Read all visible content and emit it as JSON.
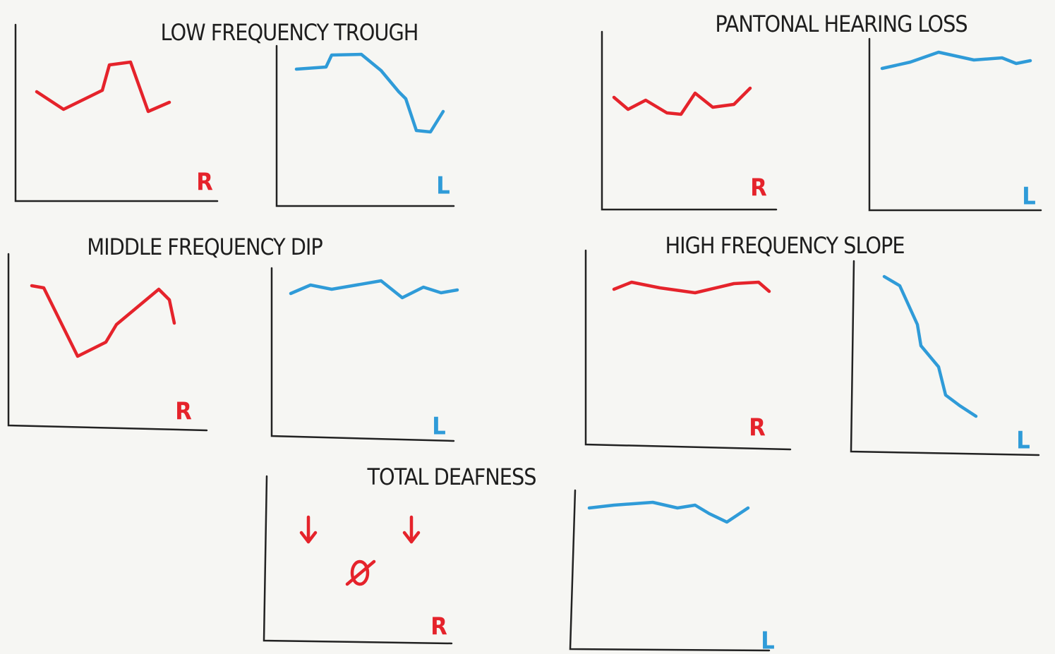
{
  "panels": [
    {
      "title": "LOW FREQUENCY TROUGH",
      "right_ear": "R",
      "left_ear": "L"
    },
    {
      "title": "PANTONAL HEARING LOSS",
      "right_ear": "R",
      "left_ear": "L"
    },
    {
      "title": "MIDDLE FREQUENCY DIP",
      "right_ear": "R",
      "left_ear": "L"
    },
    {
      "title": "HIGH FREQUENCY SLOPE",
      "right_ear": "R",
      "left_ear": "L"
    },
    {
      "title": "TOTAL DEAFNESS",
      "right_ear": "R",
      "left_ear": "L"
    }
  ]
}
